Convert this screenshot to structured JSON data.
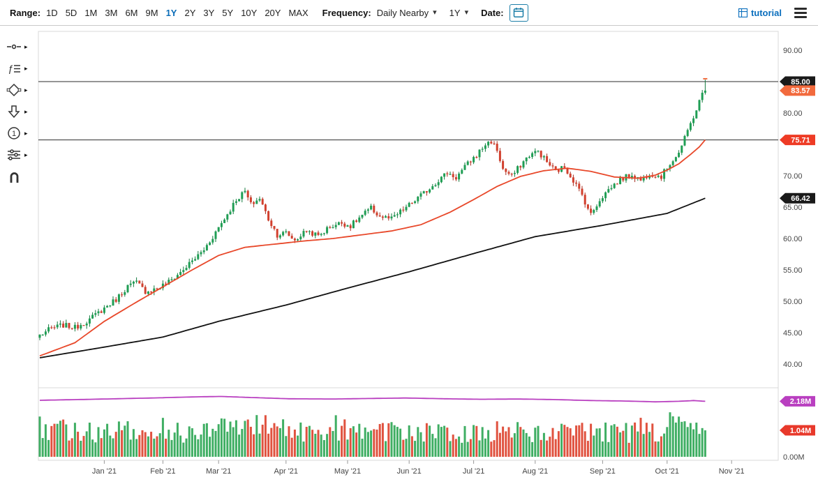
{
  "toolbar": {
    "range_label": "Range:",
    "range_options": [
      "1D",
      "5D",
      "1M",
      "3M",
      "6M",
      "9M",
      "1Y",
      "2Y",
      "3Y",
      "5Y",
      "10Y",
      "20Y",
      "MAX"
    ],
    "range_active": "1Y",
    "frequency_label": "Frequency:",
    "frequency_value": "Daily Nearby",
    "period_value": "1Y",
    "date_label": "Date:",
    "tutorial_label": "tutorial"
  },
  "sidebar": {
    "tools": [
      {
        "name": "annotation-line-tool"
      },
      {
        "name": "indicators-tool"
      },
      {
        "name": "shapes-tool"
      },
      {
        "name": "arrow-marker-tool"
      },
      {
        "name": "number-label-tool"
      },
      {
        "name": "settings-sliders-tool"
      },
      {
        "name": "magnet-snap-tool"
      }
    ]
  },
  "chart_data": {
    "type": "candlestick",
    "n_candles": 228,
    "last_close": 83.57,
    "up_color": "#1f9e54",
    "up_stroke": "#137a3e",
    "down_color": "#d2402e",
    "down_stroke": "#a62b1d",
    "price_axis": {
      "min": 40,
      "max": 90,
      "tick_labels": [
        {
          "t": "90.00",
          "v": 90
        },
        {
          "t": "80.00",
          "v": 80
        },
        {
          "t": "70.00",
          "v": 70
        },
        {
          "t": "65.00",
          "v": 65
        },
        {
          "t": "60.00",
          "v": 60
        },
        {
          "t": "55.00",
          "v": 55
        },
        {
          "t": "50.00",
          "v": 50
        },
        {
          "t": "45.00",
          "v": 45
        },
        {
          "t": "40.00",
          "v": 40
        }
      ]
    },
    "x_ticks": [
      {
        "t": "Jan '21",
        "i": 22
      },
      {
        "t": "Feb '21",
        "i": 42
      },
      {
        "t": "Mar '21",
        "i": 61
      },
      {
        "t": "Apr '21",
        "i": 84
      },
      {
        "t": "May '21",
        "i": 105
      },
      {
        "t": "Jun '21",
        "i": 126
      },
      {
        "t": "Jul '21",
        "i": 148
      },
      {
        "t": "Aug '21",
        "i": 169
      },
      {
        "t": "Sep '21",
        "i": 192
      },
      {
        "t": "Oct '21",
        "i": 214
      },
      {
        "t": "Nov '21",
        "i": 236
      }
    ],
    "close_anchors": [
      [
        0,
        44.6
      ],
      [
        4,
        45.7
      ],
      [
        8,
        46.2
      ],
      [
        12,
        45.8
      ],
      [
        17,
        47.1
      ],
      [
        22,
        48.9
      ],
      [
        26,
        50.3
      ],
      [
        30,
        52.4
      ],
      [
        33,
        53.0
      ],
      [
        36,
        51.6
      ],
      [
        40,
        52.0
      ],
      [
        44,
        53.1
      ],
      [
        48,
        54.6
      ],
      [
        52,
        56.4
      ],
      [
        56,
        58.2
      ],
      [
        59,
        60.3
      ],
      [
        61,
        61.8
      ],
      [
        64,
        63.9
      ],
      [
        67,
        66.2
      ],
      [
        70,
        67.5
      ],
      [
        72,
        65.4
      ],
      [
        75,
        66.4
      ],
      [
        78,
        63.1
      ],
      [
        81,
        60.6
      ],
      [
        84,
        60.9
      ],
      [
        87,
        59.7
      ],
      [
        91,
        61.3
      ],
      [
        95,
        60.4
      ],
      [
        99,
        61.9
      ],
      [
        103,
        62.5
      ],
      [
        106,
        62.0
      ],
      [
        110,
        63.7
      ],
      [
        113,
        64.8
      ],
      [
        116,
        63.5
      ],
      [
        120,
        63.1
      ],
      [
        124,
        64.6
      ],
      [
        127,
        65.7
      ],
      [
        131,
        67.2
      ],
      [
        135,
        68.9
      ],
      [
        139,
        70.5
      ],
      [
        142,
        69.7
      ],
      [
        146,
        71.9
      ],
      [
        149,
        73.3
      ],
      [
        152,
        75.0
      ],
      [
        154,
        75.5
      ],
      [
        156,
        74.1
      ],
      [
        158,
        71.0
      ],
      [
        161,
        69.9
      ],
      [
        164,
        71.7
      ],
      [
        167,
        73.3
      ],
      [
        170,
        73.9
      ],
      [
        173,
        72.2
      ],
      [
        176,
        70.7
      ],
      [
        179,
        71.4
      ],
      [
        182,
        69.3
      ],
      [
        185,
        66.9
      ],
      [
        188,
        63.8
      ],
      [
        191,
        66.2
      ],
      [
        194,
        67.8
      ],
      [
        198,
        69.4
      ],
      [
        202,
        70.2
      ],
      [
        205,
        69.3
      ],
      [
        208,
        70.4
      ],
      [
        212,
        69.9
      ],
      [
        215,
        72.0
      ],
      [
        218,
        73.7
      ],
      [
        220,
        75.9
      ],
      [
        222,
        78.3
      ],
      [
        224,
        80.6
      ],
      [
        225,
        81.8
      ],
      [
        226,
        83.0
      ],
      [
        227,
        83.6
      ]
    ],
    "ma_fast": {
      "name": "moving-average-fast",
      "color": "#e8482a",
      "badge": {
        "t": "75.71",
        "v": 75.71,
        "color": "#ee3b25"
      },
      "anchors": [
        [
          0,
          41.3
        ],
        [
          12,
          43.4
        ],
        [
          22,
          46.8
        ],
        [
          32,
          49.6
        ],
        [
          42,
          52.3
        ],
        [
          52,
          55.0
        ],
        [
          61,
          57.3
        ],
        [
          70,
          58.6
        ],
        [
          80,
          59.1
        ],
        [
          90,
          59.6
        ],
        [
          100,
          60.0
        ],
        [
          110,
          60.6
        ],
        [
          120,
          61.2
        ],
        [
          130,
          62.2
        ],
        [
          140,
          64.2
        ],
        [
          148,
          66.2
        ],
        [
          156,
          68.3
        ],
        [
          164,
          69.9
        ],
        [
          172,
          70.8
        ],
        [
          180,
          71.2
        ],
        [
          188,
          70.7
        ],
        [
          196,
          69.8
        ],
        [
          204,
          69.6
        ],
        [
          210,
          70.1
        ],
        [
          214,
          70.9
        ],
        [
          218,
          71.9
        ],
        [
          222,
          73.4
        ],
        [
          225,
          74.6
        ],
        [
          227,
          75.71
        ]
      ]
    },
    "ma_slow": {
      "name": "moving-average-slow",
      "color": "#111111",
      "badge": {
        "t": "66.42",
        "v": 66.42,
        "color": "#1a1a1a"
      },
      "anchors": [
        [
          0,
          41.0
        ],
        [
          22,
          42.7
        ],
        [
          42,
          44.3
        ],
        [
          61,
          46.8
        ],
        [
          84,
          49.4
        ],
        [
          105,
          52.1
        ],
        [
          126,
          54.7
        ],
        [
          148,
          57.6
        ],
        [
          169,
          60.3
        ],
        [
          192,
          62.1
        ],
        [
          214,
          64.0
        ],
        [
          227,
          66.42
        ]
      ]
    },
    "hlines": [
      {
        "v": 85.0,
        "label": "85.00",
        "badge_color": "#1a1a1a"
      },
      {
        "v": 75.71
      }
    ],
    "last_price_badge": {
      "t": "83.57",
      "v": 83.57,
      "color": "#f26a3d"
    },
    "volume": {
      "zero_label": "0.00M",
      "axis_max": 2.6,
      "up_color": "#3fae63",
      "down_color": "#e0523f",
      "last_volume": 1.04,
      "last_volume_badge": {
        "t": "1.04M",
        "color": "#e8392b"
      },
      "open_interest": {
        "name": "open-interest-line",
        "color": "#b93fc0",
        "badge": {
          "t": "2.18M",
          "v": 2.18,
          "color": "#b93fc0"
        },
        "anchors": [
          [
            0,
            2.22
          ],
          [
            18,
            2.26
          ],
          [
            38,
            2.31
          ],
          [
            55,
            2.36
          ],
          [
            62,
            2.37
          ],
          [
            72,
            2.33
          ],
          [
            85,
            2.28
          ],
          [
            100,
            2.27
          ],
          [
            112,
            2.29
          ],
          [
            125,
            2.31
          ],
          [
            138,
            2.28
          ],
          [
            150,
            2.26
          ],
          [
            163,
            2.27
          ],
          [
            175,
            2.25
          ],
          [
            188,
            2.21
          ],
          [
            200,
            2.19
          ],
          [
            210,
            2.16
          ],
          [
            218,
            2.18
          ],
          [
            223,
            2.21
          ],
          [
            227,
            2.18
          ]
        ]
      }
    }
  }
}
